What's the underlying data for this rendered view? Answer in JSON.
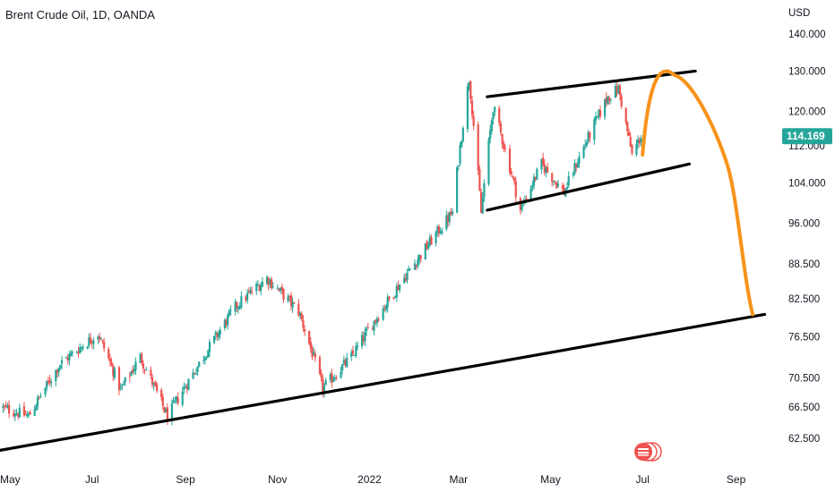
{
  "title": "Brent Crude Oil, 1D, OANDA",
  "currency": "USD",
  "price_label": "114.169",
  "colors": {
    "up": "#26a69a",
    "down": "#ef5350",
    "trendline": "#000000",
    "projection": "#f7931a",
    "price_label_bg": "#26a69a"
  },
  "chart_data": {
    "type": "candlestick",
    "title": "Brent Crude Oil, 1D, OANDA",
    "ylabel": "USD",
    "scale": "log",
    "y_ticks": [
      "140.000",
      "130.000",
      "120.000",
      "112.000",
      "104.000",
      "96.000",
      "88.500",
      "82.500",
      "76.500",
      "70.500",
      "66.500",
      "62.500"
    ],
    "x_ticks": [
      "May",
      "Jul",
      "Sep",
      "Nov",
      "2022",
      "Mar",
      "May",
      "Jul",
      "Sep"
    ],
    "x_range": [
      "2021-05-01",
      "2022-09-25"
    ],
    "y_range": [
      60.5,
      142
    ],
    "last_price": 114.169,
    "close_series": [
      {
        "date": "2021-05-01",
        "price": 66.5
      },
      {
        "date": "2021-05-20",
        "price": 65.3
      },
      {
        "date": "2021-06-10",
        "price": 72.5
      },
      {
        "date": "2021-07-05",
        "price": 77.0
      },
      {
        "date": "2021-07-20",
        "price": 68.8
      },
      {
        "date": "2021-08-02",
        "price": 73.5
      },
      {
        "date": "2021-08-20",
        "price": 65.2
      },
      {
        "date": "2021-09-10",
        "price": 72.5
      },
      {
        "date": "2021-10-05",
        "price": 81.5
      },
      {
        "date": "2021-10-25",
        "price": 86.0
      },
      {
        "date": "2021-11-15",
        "price": 80.5
      },
      {
        "date": "2021-12-01",
        "price": 69.0
      },
      {
        "date": "2021-12-20",
        "price": 73.5
      },
      {
        "date": "2022-01-10",
        "price": 81.0
      },
      {
        "date": "2022-02-01",
        "price": 89.0
      },
      {
        "date": "2022-02-25",
        "price": 98.0
      },
      {
        "date": "2022-03-08",
        "price": 128.0
      },
      {
        "date": "2022-03-16",
        "price": 98.0
      },
      {
        "date": "2022-03-24",
        "price": 121.0
      },
      {
        "date": "2022-04-11",
        "price": 98.5
      },
      {
        "date": "2022-04-25",
        "price": 108.0
      },
      {
        "date": "2022-05-10",
        "price": 102.0
      },
      {
        "date": "2022-06-08",
        "price": 123.5
      },
      {
        "date": "2022-06-15",
        "price": 125.5
      },
      {
        "date": "2022-06-24",
        "price": 110.0
      },
      {
        "date": "2022-06-30",
        "price": 114.169
      }
    ],
    "annotations": [
      {
        "type": "trendline",
        "name": "channel-upper",
        "points": [
          {
            "date": "2022-03-20",
            "price": 123.5
          },
          {
            "date": "2022-08-05",
            "price": 130.0
          }
        ]
      },
      {
        "type": "trendline",
        "name": "channel-lower",
        "points": [
          {
            "date": "2022-03-20",
            "price": 98.5
          },
          {
            "date": "2022-08-01",
            "price": 108.0
          }
        ]
      },
      {
        "type": "trendline",
        "name": "long-term-support",
        "points": [
          {
            "date": "2021-05-01",
            "price": 61.0
          },
          {
            "date": "2022-09-20",
            "price": 80.0
          }
        ]
      },
      {
        "type": "projection",
        "name": "projected-path",
        "points": [
          {
            "date": "2022-07-01",
            "price": 110.0
          },
          {
            "date": "2022-07-22",
            "price": 129.0
          },
          {
            "date": "2022-08-15",
            "price": 108.0
          },
          {
            "date": "2022-09-12",
            "price": 80.0
          }
        ]
      }
    ]
  }
}
